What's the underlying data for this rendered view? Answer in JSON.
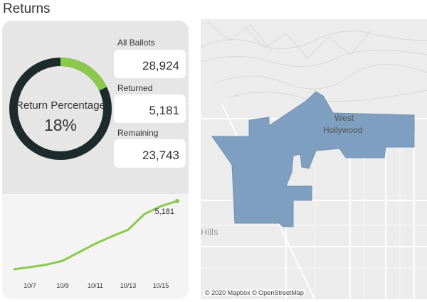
{
  "title": "Returns",
  "donut": {
    "label": "Return Percentage",
    "value_text": "18%",
    "fraction": 0.18,
    "fill_color": "#8cc84b",
    "track_color": "#1e2b2c"
  },
  "stats": [
    {
      "label": "All Ballots",
      "value": "28,924"
    },
    {
      "label": "Returned",
      "value": "5,181"
    },
    {
      "label": "Remaining",
      "value": "23,743"
    }
  ],
  "chart_data": {
    "type": "line",
    "x": [
      "10/6",
      "10/7",
      "10/8",
      "10/9",
      "10/10",
      "10/11",
      "10/12",
      "10/13",
      "10/14",
      "10/15",
      "10/16"
    ],
    "values": [
      0,
      160,
      350,
      650,
      1300,
      1950,
      2500,
      3000,
      4200,
      4800,
      5181
    ],
    "xticks": [
      "10/7",
      "10/9",
      "10/11",
      "10/13",
      "10/15"
    ],
    "end_label": "5,181",
    "line_color": "#8cc84b"
  },
  "map": {
    "place_label_line1": "West",
    "place_label_line2": "Hollywood",
    "hills_label": "Hills",
    "attribution": "© 2020 Mapbox © OpenStreetMap",
    "region_color": "#7f9fc0"
  }
}
